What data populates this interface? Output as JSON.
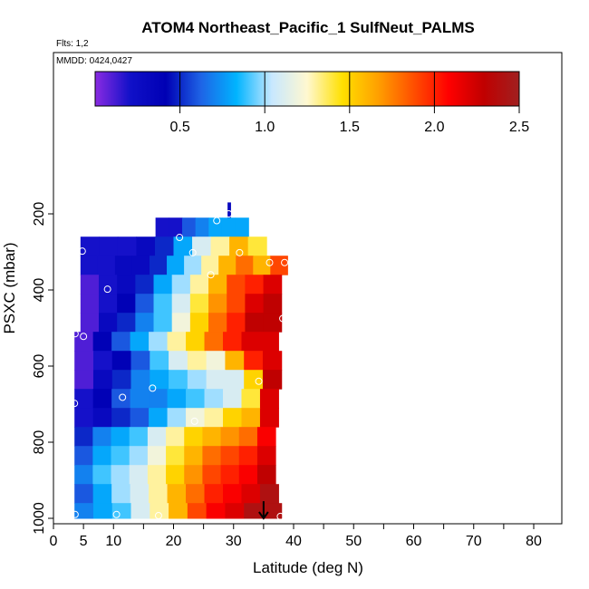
{
  "chart_data": {
    "type": "heatmap",
    "title": "ATOM4 Northeast_Pacific_1 SulfNeut_PALMS",
    "flights_label": "Flts: 1,2",
    "mmdd_label": "MMDD: 0424,0427",
    "xlabel": "Latitude (deg N)",
    "ylabel": "PSXC (mbar)",
    "xlim": [
      0,
      85
    ],
    "ylim": [
      1000,
      100
    ],
    "x_major_ticks": [
      0,
      5,
      10,
      20,
      30,
      40,
      50,
      60,
      70,
      80
    ],
    "x_minor_ticks": [
      15,
      25,
      35,
      45,
      55,
      65,
      75,
      85
    ],
    "y_ticks": [
      200,
      400,
      600,
      800,
      1000
    ],
    "colorbar": {
      "min": 0,
      "max": 2.5,
      "ticks": [
        0.5,
        1.0,
        1.5,
        2.0,
        2.5
      ],
      "tick_labels": [
        "0.5",
        "1.0",
        "1.5",
        "2.0",
        "2.5"
      ],
      "colors": [
        "#8a2be2",
        "#1010c8",
        "#0000b4",
        "#1e64e6",
        "#00b4ff",
        "#c8e8ff",
        "#fff8d0",
        "#ffe000",
        "#ffa000",
        "#ff5000",
        "#ff0000",
        "#c00000",
        "#a02020"
      ]
    },
    "pressure_bins": [
      {
        "p_top": 170,
        "p_bot": 210,
        "lat_min": 29,
        "lat_max": 29.5,
        "values": [
          0.3
        ]
      },
      {
        "p_top": 210,
        "p_bot": 260,
        "lat_min": 17,
        "lat_max": 32.5,
        "values": [
          0.2,
          0.2,
          0.6,
          0.7,
          0.8,
          0.8,
          0.8
        ]
      },
      {
        "p_top": 260,
        "p_bot": 310,
        "lat_min": 4.5,
        "lat_max": 35.5,
        "values": [
          0.2,
          0.2,
          0.2,
          0.3,
          0.5,
          0.8,
          1.1,
          1.3,
          1.6,
          1.4
        ]
      },
      {
        "p_top": 310,
        "p_bot": 360,
        "lat_min": 4.5,
        "lat_max": 39,
        "values": [
          0.2,
          0.2,
          0.3,
          0.3,
          0.5,
          0.8,
          1.0,
          1.3,
          1.6,
          1.8,
          1.6,
          1.9
        ]
      },
      {
        "p_top": 360,
        "p_bot": 410,
        "lat_min": 4.5,
        "lat_max": 38,
        "values": [
          0.1,
          0.2,
          0.3,
          0.5,
          0.8,
          1.0,
          1.3,
          1.6,
          1.9,
          2.0,
          2.2
        ]
      },
      {
        "p_top": 410,
        "p_bot": 460,
        "lat_min": 4.5,
        "lat_max": 38,
        "values": [
          0.1,
          0.2,
          0.4,
          0.6,
          0.9,
          1.1,
          1.4,
          1.7,
          1.9,
          2.2,
          2.3
        ]
      },
      {
        "p_top": 460,
        "p_bot": 510,
        "lat_min": 4.5,
        "lat_max": 38,
        "values": [
          0.1,
          0.3,
          0.5,
          0.7,
          0.9,
          1.2,
          1.5,
          1.8,
          2.0,
          2.3,
          2.3
        ]
      },
      {
        "p_top": 510,
        "p_bot": 560,
        "lat_min": 3.5,
        "lat_max": 37.5,
        "values": [
          0.1,
          0.4,
          0.6,
          0.8,
          1.0,
          1.3,
          1.5,
          1.8,
          2.0,
          2.2,
          2.2
        ]
      },
      {
        "p_top": 560,
        "p_bot": 610,
        "lat_min": 3.5,
        "lat_max": 38,
        "values": [
          0.1,
          0.2,
          0.4,
          0.6,
          0.9,
          1.1,
          1.3,
          1.2,
          1.6,
          2.0,
          2.2
        ]
      },
      {
        "p_top": 610,
        "p_bot": 660,
        "lat_min": 3.5,
        "lat_max": 38,
        "values": [
          0.1,
          0.3,
          0.5,
          0.7,
          0.8,
          0.9,
          1.0,
          1.1,
          1.1,
          1.5,
          2.3
        ]
      },
      {
        "p_top": 660,
        "p_bot": 710,
        "lat_min": 3.5,
        "lat_max": 37.5,
        "values": [
          0.2,
          0.4,
          0.6,
          0.7,
          0.7,
          0.8,
          0.9,
          1.0,
          1.1,
          1.4,
          2.2
        ]
      },
      {
        "p_top": 710,
        "p_bot": 760,
        "lat_min": 3.5,
        "lat_max": 37.5,
        "values": [
          0.2,
          0.3,
          0.5,
          0.6,
          0.8,
          1.0,
          1.2,
          1.3,
          1.5,
          1.6,
          2.2
        ]
      },
      {
        "p_top": 760,
        "p_bot": 810,
        "lat_min": 3.5,
        "lat_max": 37,
        "values": [
          0.5,
          0.7,
          0.8,
          0.9,
          1.1,
          1.3,
          1.5,
          1.6,
          1.7,
          1.8,
          2.1
        ]
      },
      {
        "p_top": 810,
        "p_bot": 860,
        "lat_min": 3.5,
        "lat_max": 37,
        "values": [
          0.6,
          0.8,
          0.9,
          1.0,
          1.2,
          1.4,
          1.6,
          1.8,
          1.9,
          2.0,
          2.2
        ]
      },
      {
        "p_top": 860,
        "p_bot": 910,
        "lat_min": 3.5,
        "lat_max": 37,
        "values": [
          0.7,
          0.9,
          1.0,
          1.1,
          1.3,
          1.5,
          1.7,
          1.9,
          2.0,
          2.1,
          2.3
        ]
      },
      {
        "p_top": 910,
        "p_bot": 960,
        "lat_min": 3.5,
        "lat_max": 37.5,
        "values": [
          0.6,
          0.8,
          1.0,
          1.1,
          1.3,
          1.6,
          1.8,
          2.0,
          2.1,
          2.2,
          2.4
        ]
      },
      {
        "p_top": 960,
        "p_bot": 1000,
        "lat_min": 3.5,
        "lat_max": 38,
        "values": [
          0.7,
          0.8,
          0.9,
          1.1,
          1.3,
          1.6,
          1.9,
          2.1,
          2.2,
          2.4,
          2.4
        ]
      }
    ],
    "sample_points": [
      {
        "lat": 29.2,
        "p": 200
      },
      {
        "lat": 27.2,
        "p": 218
      },
      {
        "lat": 21,
        "p": 262
      },
      {
        "lat": 4.8,
        "p": 298
      },
      {
        "lat": 23.2,
        "p": 302
      },
      {
        "lat": 31,
        "p": 302
      },
      {
        "lat": 36,
        "p": 328
      },
      {
        "lat": 38.5,
        "p": 328
      },
      {
        "lat": 26.2,
        "p": 360
      },
      {
        "lat": 9,
        "p": 398
      },
      {
        "lat": 38.2,
        "p": 475
      },
      {
        "lat": 3.6,
        "p": 515
      },
      {
        "lat": 5,
        "p": 522
      },
      {
        "lat": 34.2,
        "p": 640
      },
      {
        "lat": 16.5,
        "p": 658
      },
      {
        "lat": 11.5,
        "p": 682
      },
      {
        "lat": 3.5,
        "p": 698
      },
      {
        "lat": 23.5,
        "p": 745
      },
      {
        "lat": 3.6,
        "p": 990
      },
      {
        "lat": 10.5,
        "p": 990
      },
      {
        "lat": 17.5,
        "p": 993
      },
      {
        "lat": 37.8,
        "p": 995
      }
    ],
    "arrow_marker": {
      "lat": 35,
      "p_from": 955,
      "p_to": 1000
    }
  }
}
